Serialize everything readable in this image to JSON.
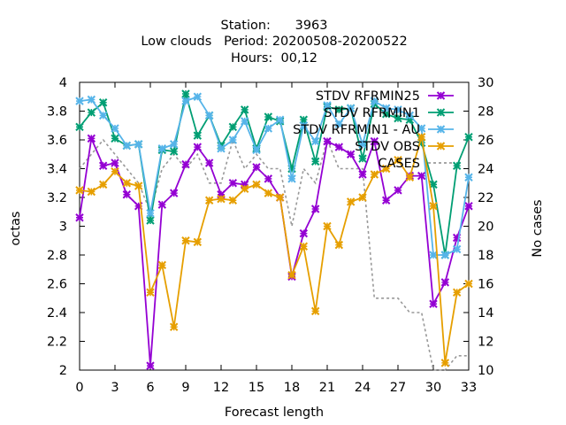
{
  "title_lines": [
    "Station:      3963",
    "Low clouds   Period: 20200508-20200522",
    "Hours:  00,12"
  ],
  "chart_data": {
    "type": "line",
    "xlabel": "Forecast length",
    "ylabel": "octas",
    "y2label": "No cases",
    "xlim": [
      0,
      33
    ],
    "ylim": [
      2,
      4
    ],
    "y2lim": [
      10,
      30
    ],
    "xticks": [
      0,
      3,
      6,
      9,
      12,
      15,
      18,
      21,
      24,
      27,
      30,
      33
    ],
    "yticks": [
      2,
      2.2,
      2.4,
      2.6,
      2.8,
      3,
      3.2,
      3.4,
      3.6,
      3.8,
      4
    ],
    "y2ticks": [
      10,
      12,
      14,
      16,
      18,
      20,
      22,
      24,
      26,
      28,
      30
    ],
    "legend_position": "top-right",
    "x": [
      0,
      1,
      2,
      3,
      4,
      5,
      6,
      7,
      8,
      9,
      10,
      11,
      12,
      13,
      14,
      15,
      16,
      17,
      18,
      19,
      20,
      21,
      22,
      23,
      24,
      25,
      26,
      27,
      28,
      29,
      30,
      31,
      32,
      33
    ],
    "series": [
      {
        "name": "STDV RFRMIN25",
        "color": "#9400d3",
        "marker": "x",
        "axis": "y1",
        "values": [
          3.06,
          3.61,
          3.42,
          3.44,
          3.22,
          3.14,
          2.03,
          3.15,
          3.23,
          3.43,
          3.55,
          3.44,
          3.22,
          3.3,
          3.29,
          3.41,
          3.33,
          3.2,
          2.65,
          2.95,
          3.12,
          3.59,
          3.55,
          3.5,
          3.36,
          3.59,
          3.18,
          3.25,
          3.35,
          3.35,
          2.46,
          2.61,
          2.92,
          3.14
        ]
      },
      {
        "name": "STDV RFRMIN1",
        "color": "#009e73",
        "marker": "x",
        "axis": "y1",
        "values": [
          3.69,
          3.79,
          3.86,
          3.61,
          3.56,
          3.57,
          3.04,
          3.53,
          3.52,
          3.92,
          3.63,
          3.77,
          3.56,
          3.69,
          3.81,
          3.54,
          3.76,
          3.73,
          3.4,
          3.74,
          3.45,
          3.83,
          3.81,
          3.82,
          3.47,
          3.85,
          3.78,
          3.75,
          3.74,
          3.58,
          3.29,
          2.8,
          3.42,
          3.62
        ]
      },
      {
        "name": "STDV RFRMIN1 - AU",
        "color": "#56b4e9",
        "marker": "x",
        "axis": "y1",
        "values": [
          3.87,
          3.88,
          3.77,
          3.68,
          3.56,
          3.57,
          3.09,
          3.54,
          3.57,
          3.87,
          3.9,
          3.77,
          3.54,
          3.6,
          3.73,
          3.53,
          3.68,
          3.74,
          3.33,
          3.7,
          3.59,
          3.84,
          3.71,
          3.82,
          3.57,
          3.87,
          3.82,
          3.81,
          3.77,
          3.68,
          2.8,
          2.8,
          2.84,
          3.34
        ]
      },
      {
        "name": "STDV OBS",
        "color": "#e69f00",
        "marker": "x",
        "axis": "y1",
        "values": [
          3.25,
          3.24,
          3.29,
          3.38,
          3.3,
          3.28,
          2.54,
          2.73,
          2.3,
          2.9,
          2.89,
          3.18,
          3.19,
          3.18,
          3.26,
          3.29,
          3.23,
          3.2,
          2.66,
          2.86,
          2.41,
          3.0,
          2.87,
          3.17,
          3.2,
          3.36,
          3.4,
          3.46,
          3.34,
          3.62,
          3.14,
          2.05,
          2.54,
          2.6
        ]
      },
      {
        "name": "CASES",
        "color": "#999999",
        "marker": "none",
        "dashed": true,
        "axis": "y2",
        "values": [
          24,
          25,
          26,
          25,
          24,
          23,
          21,
          24,
          25,
          24,
          25,
          23,
          23,
          26,
          24,
          25,
          24,
          24,
          20,
          24,
          23,
          26,
          24,
          24,
          24,
          15,
          15,
          15,
          14,
          14,
          10,
          10,
          11,
          11
        ]
      }
    ]
  }
}
